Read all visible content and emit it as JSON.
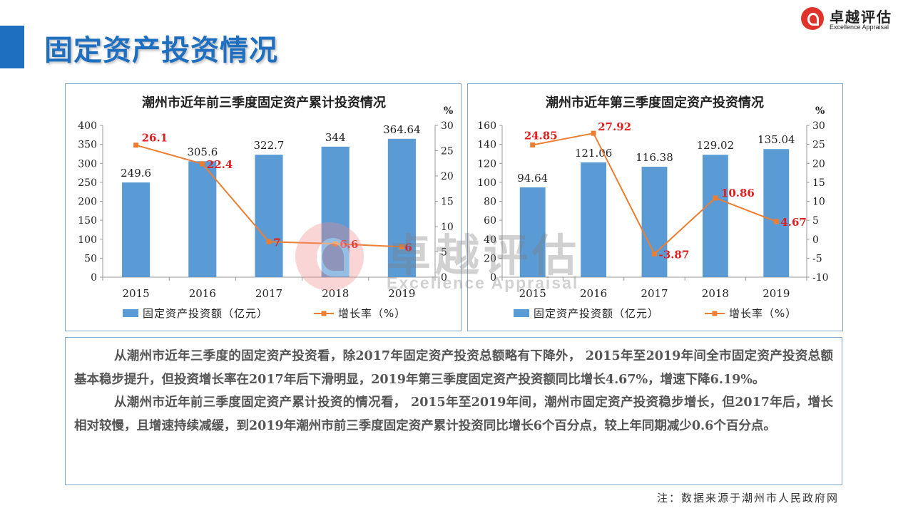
{
  "header": {
    "title": "固定资产投资情况"
  },
  "logo": {
    "cn": "卓越评估",
    "en": "Excellence Appraisal"
  },
  "watermark": {
    "cn": "卓越评估",
    "en": "Excellence Appraisal"
  },
  "colors": {
    "accent": "#1f6fc0",
    "bar": "#5b9bd5",
    "line": "#ed7d31",
    "label_red": "#e21d1d"
  },
  "chart_data": [
    {
      "type": "bar",
      "title": "潮州市近年前三季度固定资产累计投资情况",
      "categories": [
        "2015",
        "2016",
        "2017",
        "2018",
        "2019"
      ],
      "y_unit": "%",
      "ylim": [
        0,
        400
      ],
      "y_ticks": [
        0,
        50,
        100,
        150,
        200,
        250,
        300,
        350,
        400
      ],
      "y2lim": [
        0,
        30
      ],
      "y2_ticks": [
        0,
        5,
        10,
        15,
        20,
        25,
        30
      ],
      "grid": false,
      "legend_position": "bottom",
      "series": [
        {
          "name": "固定资产投资额（亿元）",
          "type": "bar",
          "axis": "left",
          "values": [
            249.6,
            305.6,
            322.7,
            344,
            364.64
          ],
          "labels": [
            "249.6",
            "305.6",
            "322.7",
            "344",
            "364.64"
          ]
        },
        {
          "name": "增长率（%）",
          "type": "line",
          "axis": "right",
          "values": [
            26.1,
            22.4,
            7,
            6.6,
            6
          ],
          "labels": [
            "26.1",
            "22.4",
            "7",
            "6.6",
            "6"
          ]
        }
      ]
    },
    {
      "type": "bar",
      "title": "潮州市近年第三季度固定资产投资情况",
      "categories": [
        "2015",
        "2016",
        "2017",
        "2018",
        "2019"
      ],
      "y_unit": "%",
      "ylim": [
        0,
        160
      ],
      "y_ticks": [
        0,
        20,
        40,
        60,
        80,
        100,
        120,
        140,
        160
      ],
      "y2lim": [
        -10,
        30
      ],
      "y2_ticks": [
        -10,
        -5,
        0,
        5,
        10,
        15,
        20,
        25,
        30
      ],
      "grid": false,
      "legend_position": "bottom",
      "series": [
        {
          "name": "固定资产投资额（亿元）",
          "type": "bar",
          "axis": "left",
          "values": [
            94.64,
            121.06,
            116.38,
            129.02,
            135.04
          ],
          "labels": [
            "94.64",
            "121.06",
            "116.38",
            "129.02",
            "135.04"
          ]
        },
        {
          "name": "增长率（%）",
          "type": "line",
          "axis": "right",
          "values": [
            24.85,
            27.92,
            -3.87,
            10.86,
            4.67
          ],
          "labels": [
            "24.85",
            "27.92",
            "-3.87",
            "10.86",
            "4.67"
          ]
        }
      ]
    }
  ],
  "analysis": {
    "p1": "从潮州市近年三季度的固定资产投资看，除2017年固定资产投资总额略有下降外， 2015年至2019年间全市固定资产投资总额基本稳步提升，但投资增长率在2017年后下滑明显，2019年第三季度固定资产投资额同比增长4.67%，增速下降6.19%。",
    "p2": "从潮州市近年前三季度固定资产累计投资的情况看， 2015年至2019年间，潮州市固定资产投资稳步增长，但2017年后，增长相对较慢，且增速持续减缓，到2019年潮州市前三季度固定资产累计投资同比增长6个百分点，较上年同期减少0.6个百分点。"
  },
  "footnote": "注：数据来源于潮州市人民政府网"
}
